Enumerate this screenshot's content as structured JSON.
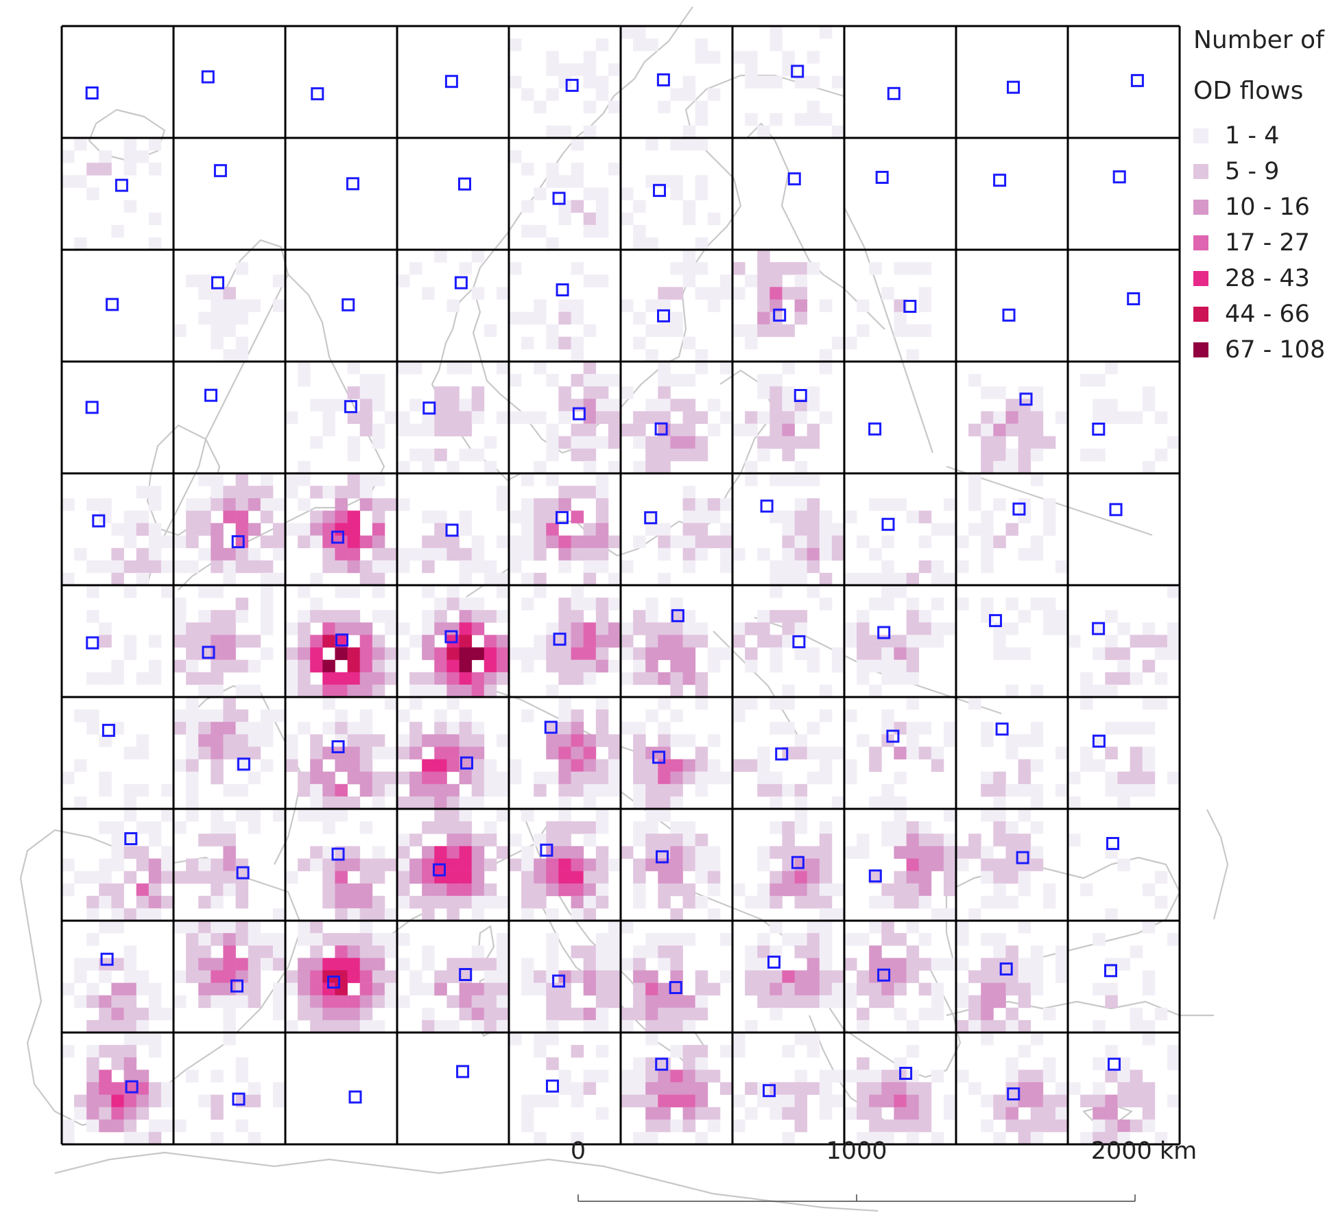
{
  "legend": {
    "title_line1": "Number of",
    "title_line2": "OD flows",
    "classes": [
      {
        "label": "1 - 4",
        "color": "#f2eef6"
      },
      {
        "label": "5 - 9",
        "color": "#e1c6e0"
      },
      {
        "label": "10 - 16",
        "color": "#d797c8"
      },
      {
        "label": "17 - 27",
        "color": "#df65b0"
      },
      {
        "label": "28 - 43",
        "color": "#e7298a"
      },
      {
        "label": "44 - 66",
        "color": "#ce1256"
      },
      {
        "label": "67 - 108",
        "color": "#91003f"
      }
    ]
  },
  "scale_bar": {
    "labels": [
      "0",
      "1000",
      "2000 km"
    ]
  },
  "colors": {
    "grid_line": "#000000",
    "basemap_line": "#c8c8c8",
    "origin_marker": "#1a1aff"
  },
  "grid": {
    "rows": 10,
    "cols": 10
  },
  "hotspot_rows": [
    [
      0,
      0,
      0,
      0,
      0.3,
      0.3,
      0.3,
      0,
      0,
      0
    ],
    [
      0.5,
      0,
      0,
      0,
      0.4,
      0.3,
      0,
      0,
      0,
      0
    ],
    [
      0,
      0.3,
      0,
      0.4,
      0.4,
      0.5,
      1.4,
      0.3,
      0,
      0
    ],
    [
      0,
      0,
      0.5,
      0.9,
      1.2,
      1.3,
      1.0,
      0,
      1.2,
      0.2
    ],
    [
      0.5,
      2.0,
      2.4,
      0.8,
      1.8,
      0.8,
      0.9,
      0.5,
      0.5,
      0
    ],
    [
      0.3,
      1.3,
      3.6,
      3.8,
      1.8,
      1.6,
      0.8,
      0.9,
      0.5,
      0.8
    ],
    [
      0.2,
      1.3,
      2.0,
      2.4,
      1.8,
      1.6,
      0.7,
      0.8,
      0.5,
      0.7
    ],
    [
      1.5,
      1.2,
      1.8,
      2.6,
      2.3,
      1.5,
      1.6,
      1.6,
      1.0,
      0.2
    ],
    [
      1.2,
      2.0,
      3.2,
      1.4,
      1.6,
      1.7,
      1.5,
      1.6,
      1.4,
      0.4
    ],
    [
      2.3,
      0.5,
      0,
      0,
      0.6,
      1.8,
      0.7,
      1.6,
      1.4,
      1.1
    ]
  ]
}
